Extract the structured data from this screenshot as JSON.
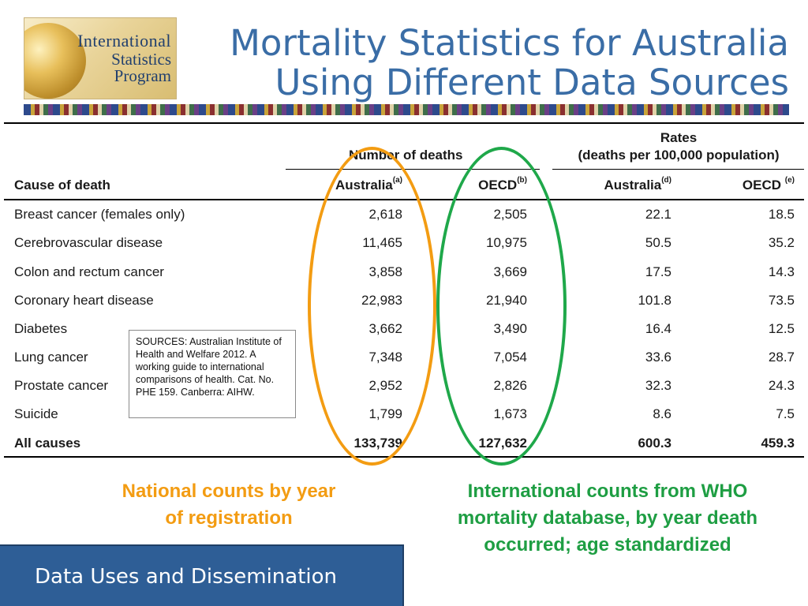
{
  "logo": {
    "line1": "International",
    "line2": "Statistics",
    "line3": "Program"
  },
  "title": {
    "line1": "Mortality Statistics for Australia",
    "line2": "Using Different Data Sources"
  },
  "table": {
    "group_headers": {
      "deaths": "Number of deaths",
      "rates_line1": "Rates",
      "rates_line2": "(deaths per 100,000 population)"
    },
    "columns": [
      {
        "label": "Cause of death",
        "sup": ""
      },
      {
        "label": "Australia",
        "sup": "(a)"
      },
      {
        "label": "OECD",
        "sup": "(b)"
      },
      {
        "label": "Australia",
        "sup": "(d)"
      },
      {
        "label": "OECD ",
        "sup": "(e)"
      }
    ],
    "rows": [
      {
        "cause": "Breast cancer (females only)",
        "aus_deaths": "2,618",
        "oecd_deaths": "2,505",
        "aus_rate": "22.1",
        "oecd_rate": "18.5"
      },
      {
        "cause": "Cerebrovascular disease",
        "aus_deaths": "11,465",
        "oecd_deaths": "10,975",
        "aus_rate": "50.5",
        "oecd_rate": "35.2"
      },
      {
        "cause": "Colon and rectum cancer",
        "aus_deaths": "3,858",
        "oecd_deaths": "3,669",
        "aus_rate": "17.5",
        "oecd_rate": "14.3"
      },
      {
        "cause": "Coronary heart disease",
        "aus_deaths": "22,983",
        "oecd_deaths": "21,940",
        "aus_rate": "101.8",
        "oecd_rate": "73.5"
      },
      {
        "cause": "Diabetes",
        "aus_deaths": "3,662",
        "oecd_deaths": "3,490",
        "aus_rate": "16.4",
        "oecd_rate": "12.5"
      },
      {
        "cause": "Lung cancer",
        "aus_deaths": "7,348",
        "oecd_deaths": "7,054",
        "aus_rate": "33.6",
        "oecd_rate": "28.7"
      },
      {
        "cause": "Prostate cancer",
        "aus_deaths": "2,952",
        "oecd_deaths": "2,826",
        "aus_rate": "32.3",
        "oecd_rate": "24.3"
      },
      {
        "cause": "Suicide",
        "aus_deaths": "1,799",
        "oecd_deaths": "1,673",
        "aus_rate": "8.6",
        "oecd_rate": "7.5"
      },
      {
        "cause": "All causes",
        "aus_deaths": "133,739",
        "oecd_deaths": "127,632",
        "aus_rate": "600.3",
        "oecd_rate": "459.3"
      }
    ]
  },
  "sources": "SOURCES: Australian Institute of Health and Welfare 2012. A working guide to international comparisons of health. Cat. No. PHE 159. Canberra: AIHW.",
  "captions": {
    "national": "National counts by year of registration",
    "international": "International counts from WHO mortality database, by year death occurred; age standardized"
  },
  "colors": {
    "accent_orange": "#f39c12",
    "accent_green": "#1e9e43",
    "title_blue": "#3a6da6",
    "footer_blue": "#2e5e96"
  },
  "footer": {
    "label": "Data Uses and Dissemination"
  }
}
